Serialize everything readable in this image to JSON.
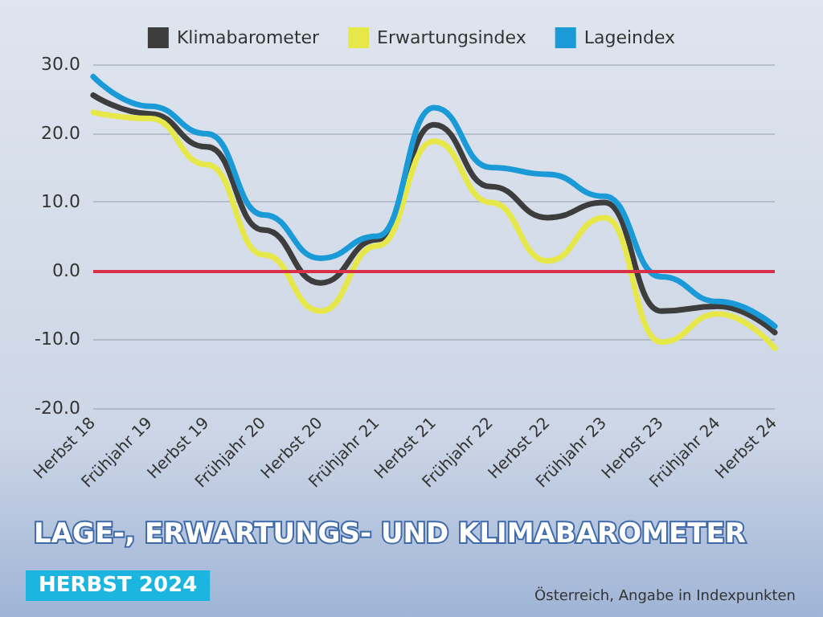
{
  "chart_data": {
    "type": "line",
    "title": "LAGE-, ERWARTUNGS- UND KLIMABAROMETER",
    "subtitle": "HERBST 2024",
    "annotations": [
      "Österreich, Angabe in Indexpunkten"
    ],
    "categories": [
      "Herbst 18",
      "Frühjahr 19",
      "Herbst 19",
      "Frühjahr 20",
      "Herbst 20",
      "Frühjahr 21",
      "Herbst 21",
      "Frühjahr 22",
      "Herbst 22",
      "Frühjahr 23",
      "Herbst 23",
      "Frühjahr 24",
      "Herbst 24"
    ],
    "series": [
      {
        "name": "Klimabarometer",
        "color": "#3d3d3d",
        "values": [
          25.5,
          22.8,
          18,
          5.9,
          -1.8,
          4.5,
          21.2,
          12.2,
          7.7,
          9.9,
          -5.9,
          -5.2,
          -9
        ]
      },
      {
        "name": "Erwartungsindex",
        "color": "#e6e84a",
        "values": [
          23,
          22.1,
          15.4,
          2.3,
          -5.9,
          3.6,
          18.8,
          9.9,
          1.4,
          7.7,
          -10.4,
          -6.3,
          -11.3
        ]
      },
      {
        "name": "Lageindex",
        "color": "#1a9ad6",
        "values": [
          28.2,
          23.9,
          19.9,
          8.1,
          1.8,
          5,
          23.7,
          15,
          14,
          10.8,
          -0.9,
          -4.5,
          -8.1
        ]
      }
    ],
    "ylim": [
      -20,
      30
    ],
    "yticks": [
      {
        "value": -20,
        "label": "-20.0"
      },
      {
        "value": -10,
        "label": "-10.0"
      },
      {
        "value": 0,
        "label": "0.0"
      },
      {
        "value": 10,
        "label": "10.0"
      },
      {
        "value": 20,
        "label": "20.0"
      },
      {
        "value": 30,
        "label": "30.0"
      }
    ],
    "ref_lines": [
      {
        "axis": "y",
        "value": 0,
        "color": "#d9304a"
      }
    ],
    "grid": "y",
    "legend": "top",
    "marker": "none",
    "line_style": "solid"
  }
}
